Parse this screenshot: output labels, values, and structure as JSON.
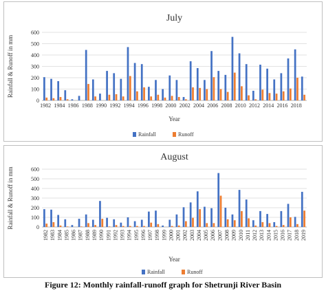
{
  "caption": "Figure 12: Monthly rainfall-runoff graph for Shetrunji River Basin",
  "chart_data": [
    {
      "type": "bar",
      "title": "July",
      "xlabel": "Year",
      "ylabel": "Rainfall & Runoff in mm",
      "ylim": [
        0,
        600
      ],
      "yticks": [
        0,
        100,
        200,
        300,
        400,
        500,
        600
      ],
      "categories": [
        "1982",
        "1983",
        "1984",
        "1985",
        "1986",
        "1987",
        "1988",
        "1989",
        "1990",
        "1991",
        "1992",
        "1993",
        "1994",
        "1995",
        "1996",
        "1997",
        "1998",
        "1999",
        "2000",
        "2001",
        "2002",
        "2003",
        "2004",
        "2005",
        "2006",
        "2007",
        "2008",
        "2009",
        "2010",
        "2011",
        "2012",
        "2013",
        "2014",
        "2015",
        "2016",
        "2017",
        "2018",
        "2019"
      ],
      "tick_labels": [
        "1982",
        "1984",
        "1986",
        "1988",
        "1990",
        "1992",
        "1994",
        "1996",
        "1998",
        "2000",
        "2002",
        "2004",
        "2006",
        "2008",
        "2010",
        "2012",
        "2014",
        "2016",
        "2018"
      ],
      "series": [
        {
          "name": "Rainfall",
          "color": "#4472c4",
          "values": [
            205,
            190,
            170,
            90,
            10,
            40,
            445,
            185,
            60,
            260,
            240,
            190,
            470,
            330,
            320,
            120,
            180,
            100,
            220,
            180,
            30,
            345,
            285,
            180,
            435,
            260,
            225,
            560,
            415,
            320,
            85,
            315,
            280,
            185,
            240,
            370,
            450,
            210
          ]
        },
        {
          "name": "Runoff",
          "color": "#ed7d31",
          "values": [
            25,
            20,
            30,
            10,
            0,
            0,
            145,
            35,
            0,
            50,
            55,
            35,
            215,
            80,
            115,
            35,
            50,
            25,
            40,
            30,
            10,
            115,
            110,
            100,
            205,
            100,
            75,
            245,
            125,
            45,
            10,
            95,
            65,
            60,
            80,
            105,
            200,
            50
          ]
        }
      ],
      "grid": true,
      "legend": "bottom"
    },
    {
      "type": "bar",
      "title": "August",
      "xlabel": "Year",
      "ylabel": "Rainfall & Runoff in mm",
      "ylim": [
        0,
        600
      ],
      "yticks": [
        0,
        100,
        200,
        300,
        400,
        500,
        600
      ],
      "categories": [
        "1982",
        "1983",
        "1984",
        "1985",
        "1986",
        "1987",
        "1988",
        "1989",
        "1990",
        "1991",
        "1992",
        "1993",
        "1994",
        "1995",
        "1996",
        "1997",
        "1998",
        "1999",
        "2000",
        "2001",
        "2002",
        "2003",
        "2004",
        "2005",
        "2006",
        "2007",
        "2008",
        "2009",
        "2010",
        "2011",
        "2012",
        "2013",
        "2014",
        "2015",
        "2016",
        "2017",
        "2018",
        "2019"
      ],
      "series": [
        {
          "name": "Rainfall",
          "color": "#4472c4",
          "values": [
            185,
            180,
            125,
            80,
            20,
            85,
            130,
            75,
            270,
            95,
            80,
            45,
            100,
            60,
            75,
            160,
            170,
            15,
            75,
            130,
            205,
            255,
            370,
            210,
            195,
            560,
            200,
            130,
            385,
            285,
            70,
            165,
            135,
            50,
            165,
            240,
            105,
            365
          ]
        },
        {
          "name": "Runoff",
          "color": "#ed7d31",
          "values": [
            35,
            50,
            15,
            5,
            0,
            5,
            40,
            20,
            85,
            5,
            20,
            10,
            10,
            10,
            10,
            45,
            30,
            0,
            10,
            15,
            60,
            95,
            185,
            40,
            40,
            325,
            80,
            70,
            165,
            90,
            15,
            50,
            40,
            10,
            20,
            100,
            30,
            170
          ]
        }
      ],
      "grid": true,
      "legend": "bottom"
    }
  ]
}
